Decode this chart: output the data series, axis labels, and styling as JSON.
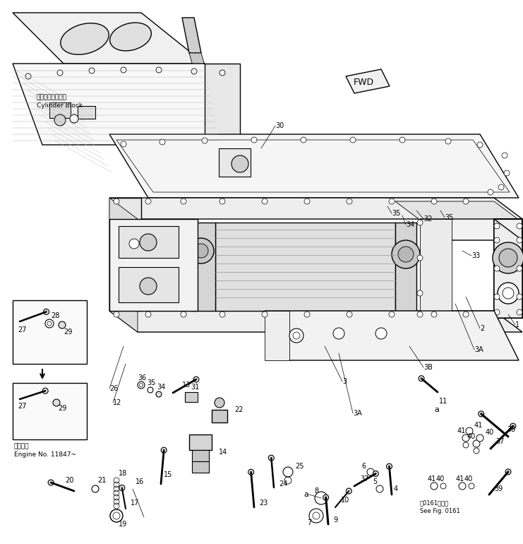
{
  "bg": "#ffffff",
  "fwd_label": "FWD",
  "cylinder_block_jp": "シリンダブロック",
  "cylinder_block_en": "Cylinder Block",
  "engine_note_jp": "適用号機",
  "engine_note_en": "Engine No. 11847~",
  "see_fig_jp": "第0161図参照",
  "see_fig_en": "See Fig. 0161",
  "lw_thin": 0.6,
  "lw_med": 1.0,
  "lw_thick": 1.5
}
